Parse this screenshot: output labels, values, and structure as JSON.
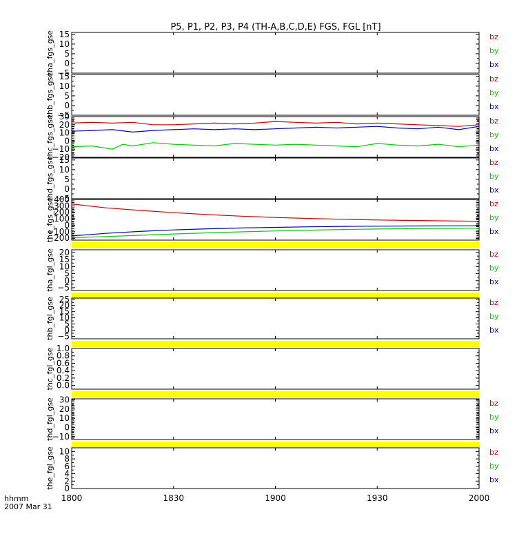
{
  "chart_data": {
    "type": "line",
    "title": "P5, P1, P2, P3, P4 (TH-A,B,C,D,E) FGS, FGL [nT]",
    "x_tick_labels": [
      "1800",
      "1830",
      "1900",
      "1930",
      "2000"
    ],
    "x_tick_values": [
      0,
      30,
      60,
      90,
      120
    ],
    "x_unit_label": "hhmm",
    "date_label": "2007 Mar 31",
    "xlim": [
      0,
      120
    ],
    "colors": {
      "bx": "#0000d0",
      "by": "#00cc00",
      "bz": "#d00000",
      "fill": "#ffff00"
    },
    "panels": [
      {
        "ylabel": "tha_fgs_gse",
        "ylim": [
          -5,
          16
        ],
        "yticks": [
          -5,
          0,
          5,
          10,
          15
        ],
        "ytick_labels": [
          "−5",
          "0",
          "5",
          "10",
          "15"
        ],
        "legend": [
          "bz",
          "by",
          "bx"
        ],
        "series": []
      },
      {
        "ylabel": "thb_fgs_gse",
        "ylim": [
          -5,
          16
        ],
        "yticks": [
          -5,
          0,
          5,
          10,
          15
        ],
        "ytick_labels": [
          "−5",
          "0",
          "5",
          "10",
          "15"
        ],
        "legend": [
          "bz",
          "by",
          "bx"
        ],
        "series": []
      },
      {
        "ylabel": "thc_fgs_gse",
        "ylim": [
          -20,
          30
        ],
        "yticks": [
          -20,
          -10,
          0,
          10,
          20,
          30
        ],
        "ytick_labels": [
          "−20",
          "−10",
          "0",
          "10",
          "20",
          "30"
        ],
        "legend": [
          "bz",
          "by",
          "bx"
        ],
        "edge_ticks": true,
        "series": [
          {
            "name": "bz",
            "x": [
              0,
              6,
              12,
              18,
              24,
              30,
              36,
              42,
              48,
              54,
              60,
              66,
              72,
              78,
              84,
              90,
              96,
              102,
              108,
              114,
              120
            ],
            "y": [
              22,
              23,
              22,
              23,
              20,
              20,
              21,
              22,
              21,
              22,
              24,
              23,
              22,
              23,
              21,
              22,
              21,
              20,
              19,
              18,
              20
            ]
          },
          {
            "name": "by",
            "x": [
              0,
              6,
              12,
              15,
              18,
              24,
              30,
              36,
              42,
              48,
              54,
              60,
              66,
              72,
              78,
              84,
              90,
              96,
              102,
              108,
              114,
              120
            ],
            "y": [
              -7,
              -6,
              -10,
              -4,
              -6,
              -2,
              -4,
              -5,
              -6,
              -3,
              -4,
              -5,
              -4,
              -5,
              -6,
              -7,
              -3,
              -5,
              -6,
              -4,
              -7,
              -5
            ]
          },
          {
            "name": "bx",
            "x": [
              0,
              6,
              12,
              18,
              24,
              30,
              36,
              42,
              48,
              54,
              60,
              66,
              72,
              78,
              84,
              90,
              96,
              102,
              108,
              114,
              120
            ],
            "y": [
              12,
              13,
              14,
              11,
              13,
              14,
              15,
              14,
              15,
              14,
              15,
              16,
              17,
              16,
              17,
              18,
              16,
              15,
              17,
              14,
              18
            ]
          }
        ]
      },
      {
        "ylabel": "thd_fgs_gse",
        "ylim": [
          -5,
          16
        ],
        "yticks": [
          -5,
          0,
          5,
          10,
          15
        ],
        "ytick_labels": [
          "−5",
          "0",
          "5",
          "10",
          "15"
        ],
        "legend": [
          "bz",
          "by",
          "bx"
        ],
        "series": []
      },
      {
        "ylabel": "the_fgs_gse",
        "ylim": [
          -230,
          400
        ],
        "yticks": [
          -200,
          -100,
          0,
          100,
          200,
          300,
          400
        ],
        "ytick_labels": [
          "−200",
          "−100",
          "0",
          "100",
          "200",
          "300",
          "400"
        ],
        "legend": [
          "bz",
          "by",
          "bx"
        ],
        "edge_ticks": true,
        "fill_strip": true,
        "series": [
          {
            "name": "bz",
            "x": [
              0,
              10,
              20,
              30,
              40,
              50,
              60,
              70,
              80,
              90,
              100,
              110,
              120
            ],
            "y": [
              330,
              270,
              230,
              195,
              165,
              140,
              120,
              105,
              92,
              82,
              74,
              68,
              62
            ]
          },
          {
            "name": "by",
            "x": [
              0,
              10,
              20,
              30,
              40,
              50,
              60,
              70,
              80,
              90,
              100,
              110,
              120
            ],
            "y": [
              -195,
              -175,
              -155,
              -135,
              -118,
              -102,
              -88,
              -76,
              -66,
              -58,
              -52,
              -48,
              -45
            ]
          },
          {
            "name": "bx",
            "x": [
              0,
              10,
              20,
              30,
              40,
              50,
              60,
              70,
              80,
              90,
              100,
              110,
              120
            ],
            "y": [
              -165,
              -125,
              -95,
              -72,
              -55,
              -42,
              -32,
              -24,
              -18,
              -14,
              -11,
              -9,
              -8
            ]
          }
        ]
      },
      {
        "ylabel": "tha_fgl_gse",
        "ylim": [
          -7,
          22
        ],
        "yticks": [
          -5,
          0,
          5,
          10,
          15,
          20
        ],
        "ytick_labels": [
          "−5",
          "0",
          "5",
          "10",
          "15",
          "20"
        ],
        "legend": [
          "bz",
          "by",
          "bx"
        ],
        "fill_strip": true,
        "series": []
      },
      {
        "ylabel": "thb_fgl_gse",
        "ylim": [
          -7,
          26
        ],
        "yticks": [
          -5,
          0,
          5,
          10,
          15,
          20,
          25
        ],
        "ytick_labels": [
          "−5",
          "0",
          "5",
          "10",
          "15",
          "20",
          "25"
        ],
        "legend": [
          "bz",
          "by",
          "bx"
        ],
        "fill_strip": true,
        "series": []
      },
      {
        "ylabel": "thc_fgl_gse",
        "ylim": [
          -0.1,
          1.0
        ],
        "yticks": [
          0.0,
          0.2,
          0.4,
          0.6,
          0.8,
          1.0
        ],
        "ytick_labels": [
          "0.0",
          "0.2",
          "0.4",
          "0.6",
          "0.8",
          "1.0"
        ],
        "legend": [],
        "fill_strip": true,
        "series": []
      },
      {
        "ylabel": "thd_fgl_gse",
        "ylim": [
          -13,
          31
        ],
        "yticks": [
          -10,
          0,
          10,
          20,
          30
        ],
        "ytick_labels": [
          "−10",
          "0",
          "10",
          "20",
          "30"
        ],
        "legend": [
          "bz",
          "by",
          "bx"
        ],
        "edge_ticks": true,
        "fill_strip": true,
        "series": []
      },
      {
        "ylabel": "the_fgl_gse",
        "ylim": [
          0,
          11
        ],
        "yticks": [
          0,
          2,
          4,
          6,
          8,
          10
        ],
        "ytick_labels": [
          "0",
          "2",
          "4",
          "6",
          "8",
          "10"
        ],
        "legend": [
          "bz",
          "by",
          "bx"
        ],
        "series": []
      }
    ]
  }
}
